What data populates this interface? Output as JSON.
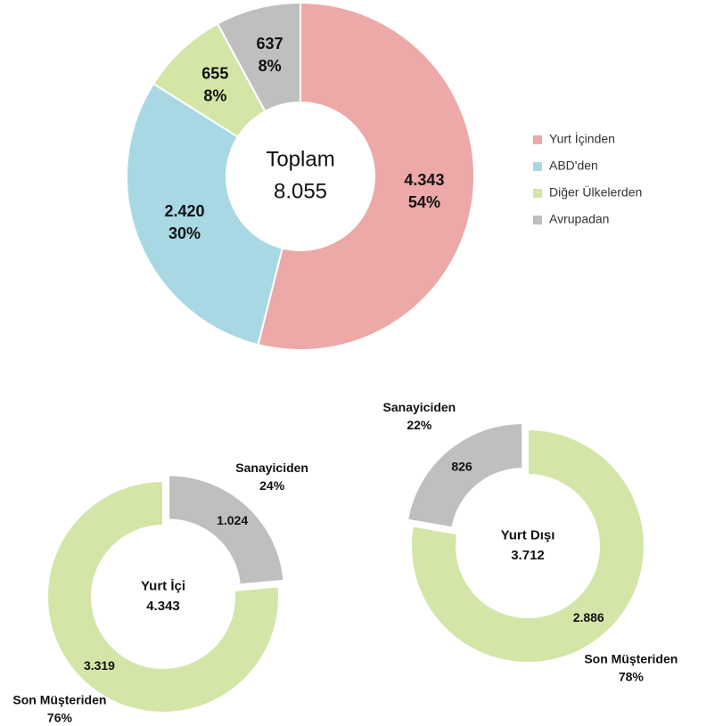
{
  "chart_data": [
    {
      "type": "donut",
      "categories": [
        "Yurt İçinden",
        "ABD'den",
        "Diğer Ülkelerden",
        "Avrupadan"
      ],
      "values": [
        4343,
        2420,
        655,
        637
      ],
      "value_labels": [
        "4.343",
        "2.420",
        "655",
        "637"
      ],
      "percents": [
        54,
        30,
        8,
        8
      ],
      "percent_labels": [
        "54%",
        "30%",
        "8%",
        "8%"
      ],
      "colors": [
        "#eda8a8",
        "#a8d8e4",
        "#d3e6a8",
        "#bfbfbf"
      ],
      "center_label": "Toplam",
      "center_value": 8055,
      "center_value_label": "8.055",
      "legend": true,
      "legend_position": "right"
    },
    {
      "type": "donut",
      "categories": [
        "Sanayiciden",
        "Son Müşteriden"
      ],
      "values": [
        1024,
        3319
      ],
      "value_labels": [
        "1.024",
        "3.319"
      ],
      "percents": [
        24,
        76
      ],
      "percent_labels": [
        "24%",
        "76%"
      ],
      "colors": [
        "#bfbfbf",
        "#d3e6a8"
      ],
      "exploded": [
        true,
        false
      ],
      "center_label": "Yurt İçi",
      "center_value": 4343,
      "center_value_label": "4.343"
    },
    {
      "type": "donut",
      "categories": [
        "Son Müşteriden",
        "Sanayiciden"
      ],
      "values": [
        2886,
        826
      ],
      "value_labels": [
        "2.886",
        "826"
      ],
      "percents": [
        78,
        22
      ],
      "percent_labels": [
        "78%",
        "22%"
      ],
      "colors": [
        "#d3e6a8",
        "#bfbfbf"
      ],
      "exploded": [
        false,
        true
      ],
      "center_label": "Yurt Dışı",
      "center_value": 3712,
      "center_value_label": "3.712"
    }
  ]
}
